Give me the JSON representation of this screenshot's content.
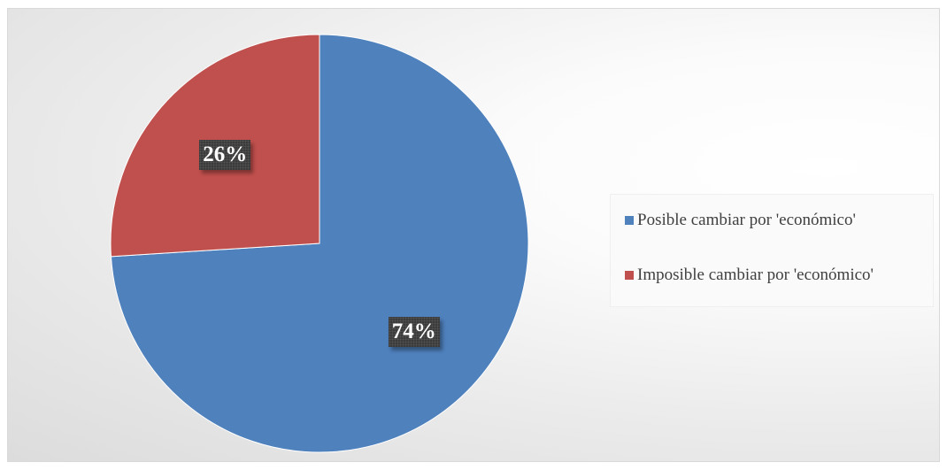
{
  "chart_data": {
    "type": "pie",
    "slices": [
      {
        "label": "Posible cambiar por 'económico'",
        "value": 74,
        "display": "74%",
        "color": "#4f81bd"
      },
      {
        "label": "Imposible cambiar por 'económico'",
        "value": 26,
        "display": "26%",
        "color": "#c0504d"
      }
    ],
    "start_angle_deg": 0,
    "direction": "clockwise",
    "legend_position": "right"
  }
}
